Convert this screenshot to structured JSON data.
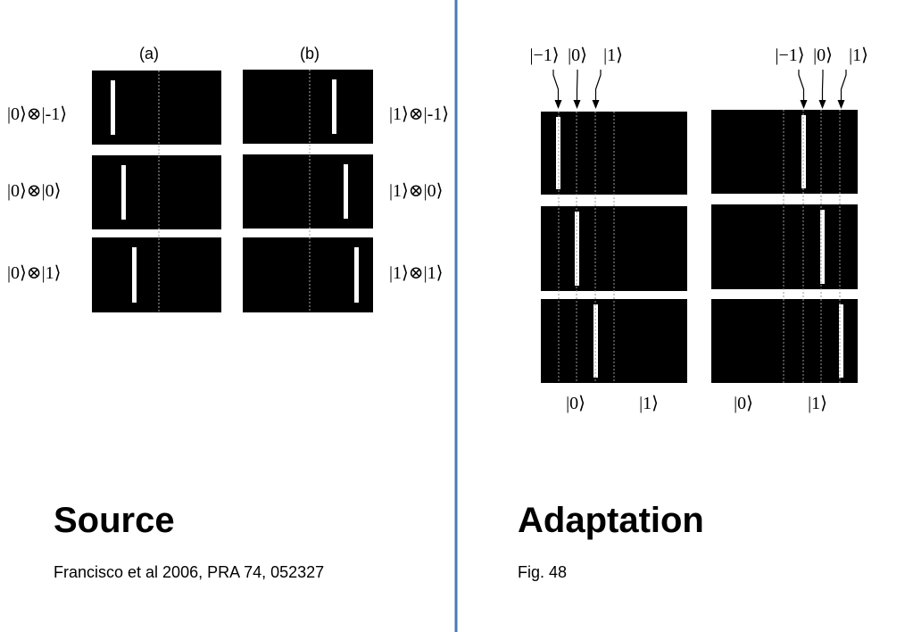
{
  "source_figure": {
    "panel_labels": [
      "(a)",
      "(b)"
    ],
    "row_labels_a": [
      "|0⟩⊗|-1⟩",
      "|0⟩⊗|0⟩",
      "|0⟩⊗|1⟩"
    ],
    "row_labels_b": [
      "|1⟩⊗|-1⟩",
      "|1⟩⊗|0⟩",
      "|1⟩⊗|1⟩"
    ]
  },
  "adapted_figure": {
    "panels": [
      {
        "top_labels": [
          "|−1⟩",
          "|0⟩",
          "|1⟩"
        ],
        "bottom_labels": [
          "|0⟩",
          "|1⟩"
        ]
      },
      {
        "top_labels": [
          "|−1⟩",
          "|0⟩",
          "|1⟩"
        ],
        "bottom_labels": [
          "|0⟩",
          "|1⟩"
        ]
      }
    ]
  },
  "source": {
    "heading": "Source",
    "citation": "Francisco et al 2006, PRA 74, 052327"
  },
  "adaptation": {
    "heading": "Adaptation",
    "caption": "Fig. 48"
  }
}
